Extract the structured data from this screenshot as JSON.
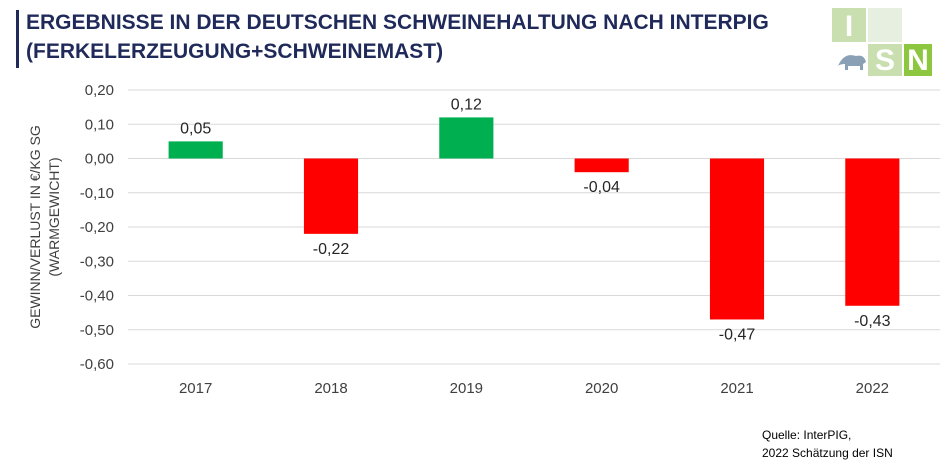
{
  "header": {
    "title_line1": "ERGEBNISSE IN DER DEUTSCHEN SCHWEINEHALTUNG NACH INTERPIG",
    "title_line2": "(FERKELERZEUGUNG+SCHWEINEMAST)",
    "logo_text": "ISN"
  },
  "source": {
    "line1": "Quelle: InterPIG,",
    "line2": "2022 Schätzung der ISN"
  },
  "colors": {
    "positive": "#00b050",
    "negative": "#ff0000",
    "title": "#1f2a5a",
    "grid": "#d9d9d9",
    "logo_green": "#8dc63f"
  },
  "chart_data": {
    "type": "bar",
    "categories": [
      "2017",
      "2018",
      "2019",
      "2020",
      "2021",
      "2022"
    ],
    "values": [
      0.05,
      -0.22,
      0.12,
      -0.04,
      -0.47,
      -0.43
    ],
    "value_labels": [
      "0,05",
      "-0,22",
      "0,12",
      "-0,04",
      "-0,47",
      "-0,43"
    ],
    "yticks": [
      "0,20",
      "0,10",
      "0,00",
      "-0,10",
      "-0,20",
      "-0,30",
      "-0,40",
      "-0,50",
      "-0,60"
    ],
    "ytick_values": [
      0.2,
      0.1,
      0.0,
      -0.1,
      -0.2,
      -0.3,
      -0.4,
      -0.5,
      -0.6
    ],
    "ylabel_line1": "GEWINN/VERLUST IN €/KG SG",
    "ylabel_line2": "(WARMGEWICHT)",
    "ylim": [
      -0.6,
      0.2
    ],
    "grid": true,
    "legend": false
  }
}
